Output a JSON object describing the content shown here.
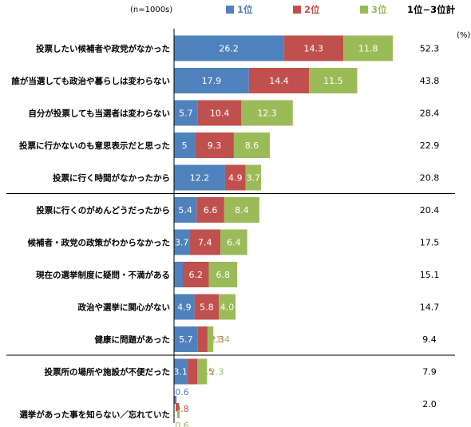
{
  "chart_data": {
    "type": "bar",
    "orientation": "horizontal",
    "stacked": true,
    "sample_note": "(n=1000s)",
    "unit": "(%)",
    "total_header": "1位−3位計",
    "categories": [
      "投票したい候補者や政党がなかった",
      "誰が当選しても政治や暮らしは変わらない",
      "自分が投票しても当選者は変わらない",
      "投票に行かないのも意思表示だと思った",
      "投票に行く時間がなかったから",
      "投票に行くのがめんどうだったから",
      "候補者・政党の政策がわからなかった",
      "現在の選挙制度に疑問・不満がある",
      "政治や選挙に関心がない",
      "健康に問題があった",
      "投票所の場所や施設が不便だった",
      "選挙があった事を知らない／忘れていた"
    ],
    "series": [
      {
        "name": "1位",
        "color": "#4f81bd",
        "values": [
          26.2,
          17.9,
          5.7,
          5,
          12.2,
          5.4,
          3.7,
          2.1,
          4.9,
          5.7,
          3.1,
          0.6
        ],
        "labels": [
          "26.2",
          "17.9",
          "5.7",
          "5",
          "12.2",
          "5.4",
          "3.7",
          "2.1",
          "4.9",
          "5.7",
          "3.1",
          "0.6"
        ]
      },
      {
        "name": "2位",
        "color": "#c0504d",
        "values": [
          14.3,
          14.4,
          10.4,
          9.3,
          4.9,
          6.6,
          7.4,
          6.2,
          5.8,
          2.3,
          2.5,
          0.8
        ],
        "labels": [
          "14.3",
          "14.4",
          "10.4",
          "9.3",
          "4.9",
          "6.6",
          "7.4",
          "6.2",
          "5.8",
          "2.3",
          "2.5",
          "0.8"
        ]
      },
      {
        "name": "3位",
        "color": "#9bbb59",
        "values": [
          11.8,
          11.5,
          12.3,
          8.6,
          3.7,
          8.4,
          6.4,
          6.8,
          4.0,
          1.4,
          2.3,
          0.6
        ],
        "labels": [
          "11.8",
          "11.5",
          "12.3",
          "8.6",
          "3.7",
          "8.4",
          "6.4",
          "6.8",
          "4.0",
          "1.4",
          "2.3",
          "0.6"
        ]
      }
    ],
    "totals": [
      "52.3",
      "43.8",
      "28.4",
      "22.9",
      "20.8",
      "20.4",
      "17.5",
      "15.1",
      "14.7",
      "9.4",
      "7.9",
      "2.0"
    ],
    "group_breaks_after": [
      4,
      9
    ],
    "xlim": [
      0,
      52.3
    ],
    "grid": false,
    "legend_position": "top"
  }
}
